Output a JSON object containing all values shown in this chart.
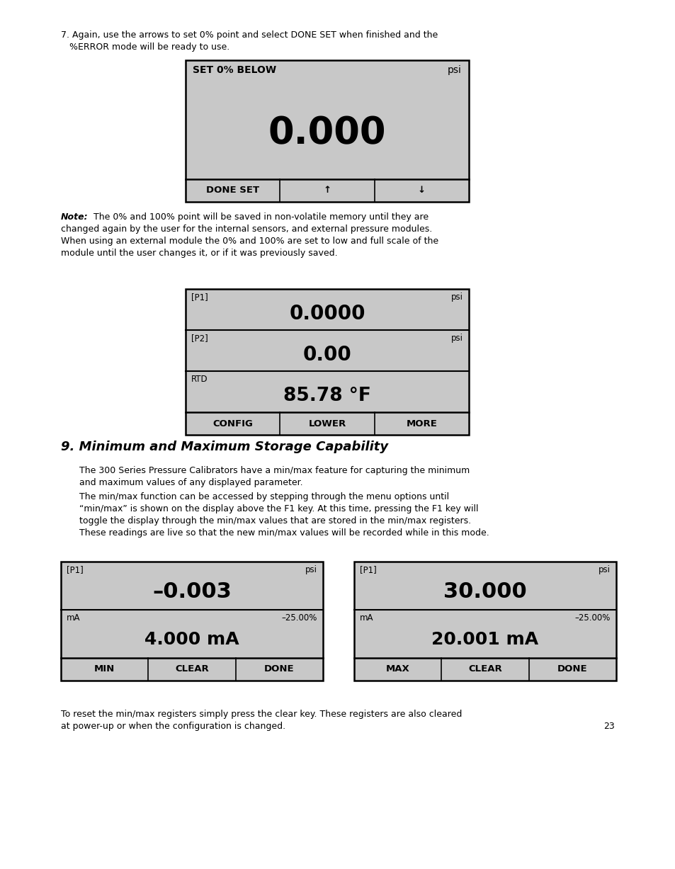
{
  "page_bg": "#ffffff",
  "display_bg": "#c8c8c8",
  "display_border": "#000000",
  "para1_line1": "7. Again, use the arrows to set 0% point and select DONE SET when finished and the",
  "para1_line2": "   %ERROR mode will be ready to use.",
  "d1_header": "SET 0% BELOW",
  "d1_unit": "psi",
  "d1_value": "0.000",
  "d1_buttons": [
    "DONE SET",
    "↑",
    "↓"
  ],
  "note_bold": "Note:",
  "note_line1": " The 0% and 100% point will be saved in non-volatile memory until they are",
  "note_line2": "changed again by the user for the internal sensors, and external pressure modules.",
  "note_line3": "When using an external module the 0% and 100% are set to low and full scale of the",
  "note_line4": "module until the user changes it, or if it was previously saved.",
  "d2_rows": [
    {
      "label": "[P1]",
      "unit": "psi",
      "value": "0.0000",
      "vfs": 20
    },
    {
      "label": "[P2]",
      "unit": "psi",
      "value": "0.00",
      "vfs": 20
    },
    {
      "label": "RTD",
      "unit": "",
      "value": "85.78 °F",
      "vfs": 19
    }
  ],
  "d2_buttons": [
    "CONFIG",
    "LOWER",
    "MORE"
  ],
  "section_title": "9. Minimum and Maximum Storage Capability",
  "sp1_line1": "The 300 Series Pressure Calibrators have a min/max feature for capturing the minimum",
  "sp1_line2": "and maximum values of any displayed parameter.",
  "sp2_line1": "The min/max function can be accessed by stepping through the menu options until",
  "sp2_line2": "“min/max” is shown on the display above the F1 key. At this time, pressing the F1 key will",
  "sp2_line3": "toggle the display through the min/max values that are stored in the min/max registers.",
  "sp2_line4": "These readings are live so that the new min/max values will be recorded while in this mode.",
  "d3_p1_label": "[P1]",
  "d3_p1_unit": "psi",
  "d3_p1_value": "–0.003",
  "d3_ma_label": "mA",
  "d3_ma_pct": "–25.00%",
  "d3_ma_value": "4.000 mA",
  "d3_buttons": [
    "MIN",
    "CLEAR",
    "DONE"
  ],
  "d4_p1_label": "[P1]",
  "d4_p1_unit": "psi",
  "d4_p1_value": "30.000",
  "d4_ma_label": "mA",
  "d4_ma_pct": "–25.00%",
  "d4_ma_value": "20.001 mA",
  "d4_buttons": [
    "MAX",
    "CLEAR",
    "DONE"
  ],
  "footer_line1": "To reset the min/max registers simply press the clear key. These registers are also cleared",
  "footer_line2": "at power-up or when the configuration is changed.",
  "page_number": "23"
}
